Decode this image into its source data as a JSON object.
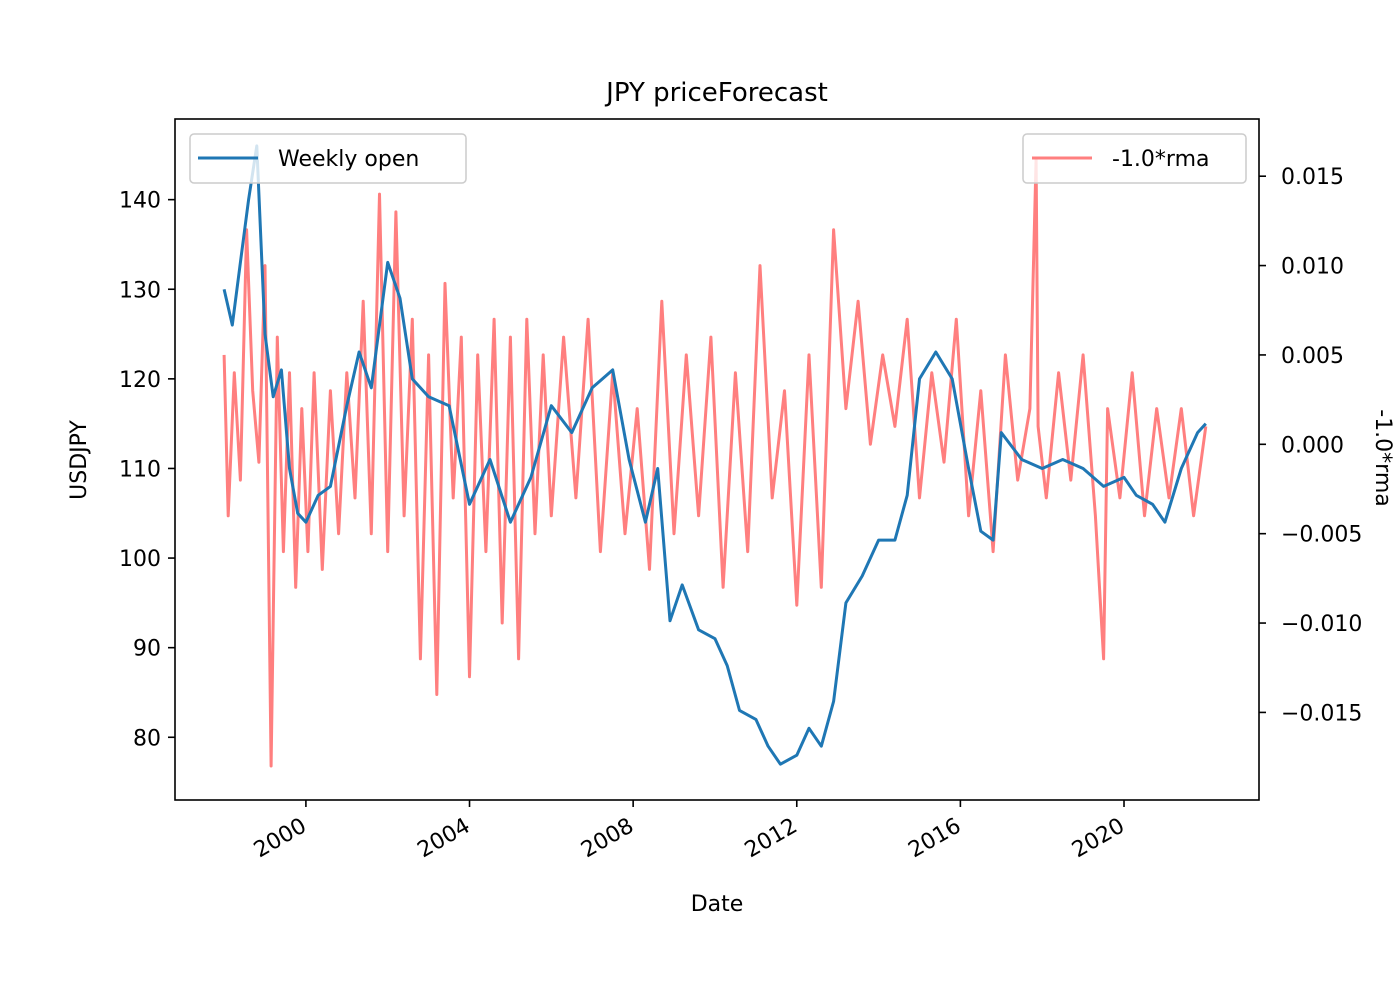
{
  "chart_data": {
    "type": "line",
    "title": "JPY  priceForecast",
    "xlabel": "Date",
    "ylabel": "USDJPY",
    "y2label": "-1.0*rma",
    "xlim": [
      1996.8,
      2023.3
    ],
    "ylim": [
      73,
      149
    ],
    "y2lim": [
      -0.0199,
      0.0182
    ],
    "x_ticks": [
      2000,
      2004,
      2008,
      2012,
      2016,
      2020
    ],
    "y_ticks": [
      80,
      90,
      100,
      110,
      120,
      130,
      140
    ],
    "y2_ticks": [
      -0.015,
      -0.01,
      -0.005,
      0.0,
      0.005,
      0.01,
      0.015
    ],
    "y2_tick_labels": [
      "−0.015",
      "−0.010",
      "−0.005",
      "0.000",
      "0.005",
      "0.010",
      "0.015"
    ],
    "legend_left_position": "upper-left",
    "legend_right_position": "upper-right",
    "grid": false,
    "series": [
      {
        "name": "Weekly open",
        "axis": "left",
        "color": "#1f77b4",
        "x": [
          1998.0,
          1998.2,
          1998.4,
          1998.6,
          1998.8,
          1999.0,
          1999.2,
          1999.4,
          1999.6,
          1999.8,
          2000.0,
          2000.3,
          2000.6,
          2001.0,
          2001.3,
          2001.6,
          2002.0,
          2002.3,
          2002.6,
          2003.0,
          2003.5,
          2004.0,
          2004.5,
          2005.0,
          2005.5,
          2006.0,
          2006.5,
          2007.0,
          2007.5,
          2007.9,
          2008.3,
          2008.6,
          2008.9,
          2009.2,
          2009.6,
          2010.0,
          2010.3,
          2010.6,
          2011.0,
          2011.3,
          2011.6,
          2012.0,
          2012.3,
          2012.6,
          2012.9,
          2013.2,
          2013.6,
          2014.0,
          2014.4,
          2014.7,
          2015.0,
          2015.4,
          2015.8,
          2016.2,
          2016.5,
          2016.8,
          2017.0,
          2017.5,
          2018.0,
          2018.5,
          2019.0,
          2019.5,
          2020.0,
          2020.3,
          2020.7,
          2021.0,
          2021.4,
          2021.8,
          2022.0
        ],
        "y": [
          130,
          126,
          133,
          140,
          146,
          125,
          118,
          121,
          110,
          105,
          104,
          107,
          108,
          117,
          123,
          119,
          133,
          129,
          120,
          118,
          117,
          106,
          111,
          104,
          109,
          117,
          114,
          119,
          121,
          111,
          104,
          110,
          93,
          97,
          92,
          91,
          88,
          83,
          82,
          79,
          77,
          78,
          81,
          79,
          84,
          95,
          98,
          102,
          102,
          107,
          120,
          123,
          120,
          110,
          103,
          102,
          114,
          111,
          110,
          111,
          110,
          108,
          109,
          107,
          106,
          104,
          110,
          114,
          115
        ]
      },
      {
        "name": "-1.0*rma",
        "axis": "right",
        "color": "#ff7f7f",
        "x": [
          1998.0,
          1998.1,
          1998.25,
          1998.4,
          1998.55,
          1998.7,
          1998.85,
          1999.0,
          1999.15,
          1999.3,
          1999.45,
          1999.6,
          1999.75,
          1999.9,
          2000.05,
          2000.2,
          2000.4,
          2000.6,
          2000.8,
          2001.0,
          2001.2,
          2001.4,
          2001.6,
          2001.8,
          2002.0,
          2002.2,
          2002.4,
          2002.6,
          2002.8,
          2003.0,
          2003.2,
          2003.4,
          2003.6,
          2003.8,
          2004.0,
          2004.2,
          2004.4,
          2004.6,
          2004.8,
          2005.0,
          2005.2,
          2005.4,
          2005.6,
          2005.8,
          2006.0,
          2006.3,
          2006.6,
          2006.9,
          2007.2,
          2007.5,
          2007.8,
          2008.1,
          2008.4,
          2008.7,
          2009.0,
          2009.3,
          2009.6,
          2009.9,
          2010.2,
          2010.5,
          2010.8,
          2011.1,
          2011.4,
          2011.7,
          2012.0,
          2012.3,
          2012.6,
          2012.9,
          2013.2,
          2013.5,
          2013.8,
          2014.1,
          2014.4,
          2014.7,
          2015.0,
          2015.3,
          2015.6,
          2015.9,
          2016.2,
          2016.5,
          2016.8,
          2017.1,
          2017.4,
          2017.7,
          2017.85,
          2017.9,
          2018.1,
          2018.4,
          2018.7,
          2019.0,
          2019.3,
          2019.5,
          2019.6,
          2019.9,
          2020.2,
          2020.5,
          2020.8,
          2021.1,
          2021.4,
          2021.7,
          2022.0
        ],
        "y": [
          0.005,
          -0.004,
          0.004,
          -0.002,
          0.012,
          0.003,
          -0.001,
          0.01,
          -0.018,
          0.006,
          -0.006,
          0.004,
          -0.008,
          0.002,
          -0.006,
          0.004,
          -0.007,
          0.003,
          -0.005,
          0.004,
          -0.003,
          0.008,
          -0.005,
          0.014,
          -0.006,
          0.013,
          -0.004,
          0.007,
          -0.012,
          0.005,
          -0.014,
          0.009,
          -0.003,
          0.006,
          -0.013,
          0.005,
          -0.006,
          0.007,
          -0.01,
          0.006,
          -0.012,
          0.007,
          -0.005,
          0.005,
          -0.004,
          0.006,
          -0.003,
          0.007,
          -0.006,
          0.004,
          -0.005,
          0.002,
          -0.007,
          0.008,
          -0.005,
          0.005,
          -0.004,
          0.006,
          -0.008,
          0.004,
          -0.006,
          0.01,
          -0.003,
          0.003,
          -0.009,
          0.005,
          -0.008,
          0.012,
          0.002,
          0.008,
          0.0,
          0.005,
          0.001,
          0.007,
          -0.003,
          0.004,
          -0.001,
          0.007,
          -0.004,
          0.003,
          -0.006,
          0.005,
          -0.002,
          0.002,
          0.016,
          0.001,
          -0.003,
          0.004,
          -0.002,
          0.005,
          -0.004,
          -0.012,
          0.002,
          -0.003,
          0.004,
          -0.004,
          0.002,
          -0.003,
          0.002,
          -0.004,
          0.001
        ]
      }
    ]
  }
}
